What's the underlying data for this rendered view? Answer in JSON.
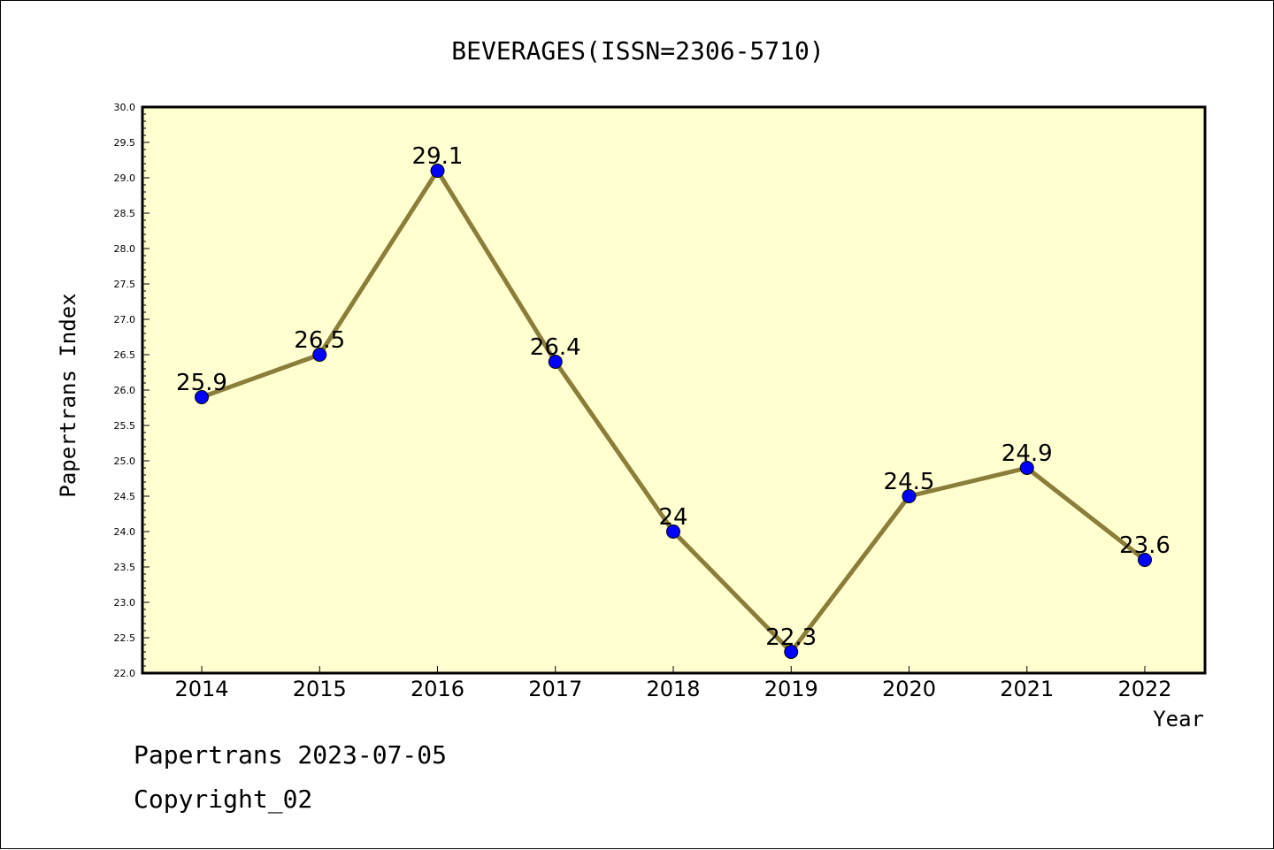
{
  "chart_data": {
    "type": "line",
    "title": "BEVERAGES(ISSN=2306-5710)",
    "xlabel": "Year",
    "ylabel": "Papertrans Index",
    "categories": [
      "2014",
      "2015",
      "2016",
      "2017",
      "2018",
      "2019",
      "2020",
      "2021",
      "2022"
    ],
    "series": [
      {
        "values": [
          25.9,
          26.5,
          29.1,
          26.4,
          24,
          22.3,
          24.5,
          24.9,
          23.6
        ],
        "labels": [
          "25.9",
          "26.5",
          "29.1",
          "26.4",
          "24",
          "22.3",
          "24.5",
          "24.9",
          "23.6"
        ]
      }
    ],
    "ylim": [
      22.0,
      30.0
    ],
    "ytick_step": 0.5,
    "grid": false,
    "plot_background": "#ffffd0",
    "line_color": "#8b7d3a",
    "marker_color": "#0000ff"
  },
  "footer": {
    "date_text": "Papertrans 2023-07-05",
    "copyright_text": "Copyright_02"
  }
}
